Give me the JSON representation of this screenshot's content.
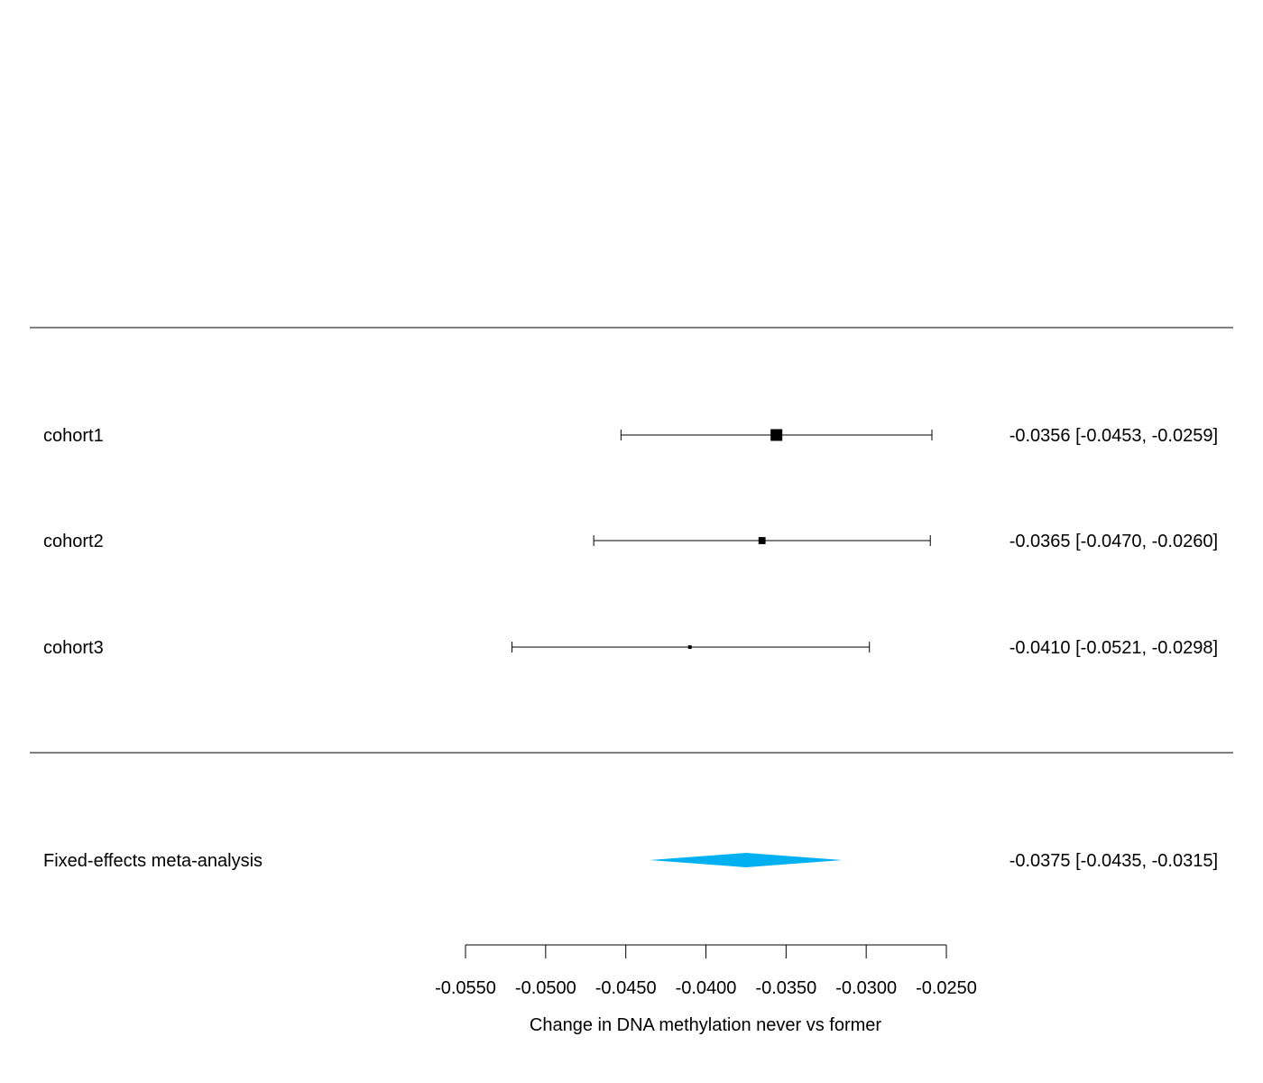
{
  "chart_data": {
    "type": "forest",
    "studies": [
      {
        "label": "cohort1",
        "estimate": -0.0356,
        "ci_low": -0.0453,
        "ci_high": -0.0259,
        "ci_text": "-0.0356 [-0.0453, -0.0259]",
        "weight": 1.0
      },
      {
        "label": "cohort2",
        "estimate": -0.0365,
        "ci_low": -0.047,
        "ci_high": -0.026,
        "ci_text": "-0.0365 [-0.0470, -0.0260]",
        "weight": 0.6
      },
      {
        "label": "cohort3",
        "estimate": -0.041,
        "ci_low": -0.0521,
        "ci_high": -0.0298,
        "ci_text": "-0.0410 [-0.0521, -0.0298]",
        "weight": 0.3
      }
    ],
    "summary": {
      "label": "Fixed-effects meta-analysis",
      "estimate": -0.0375,
      "ci_low": -0.0435,
      "ci_high": -0.0315,
      "ci_text": "-0.0375 [-0.0435, -0.0315]",
      "color": "#00B0F0"
    },
    "xlim": [
      -0.055,
      -0.025
    ],
    "xticks": [
      -0.055,
      -0.05,
      -0.045,
      -0.04,
      -0.035,
      -0.03,
      -0.025
    ],
    "xtick_labels": [
      "-0.0550",
      "-0.0500",
      "-0.0450",
      "-0.0400",
      "-0.0350",
      "-0.0300",
      "-0.0250"
    ],
    "xlabel": "Change in DNA methylation never vs former"
  }
}
